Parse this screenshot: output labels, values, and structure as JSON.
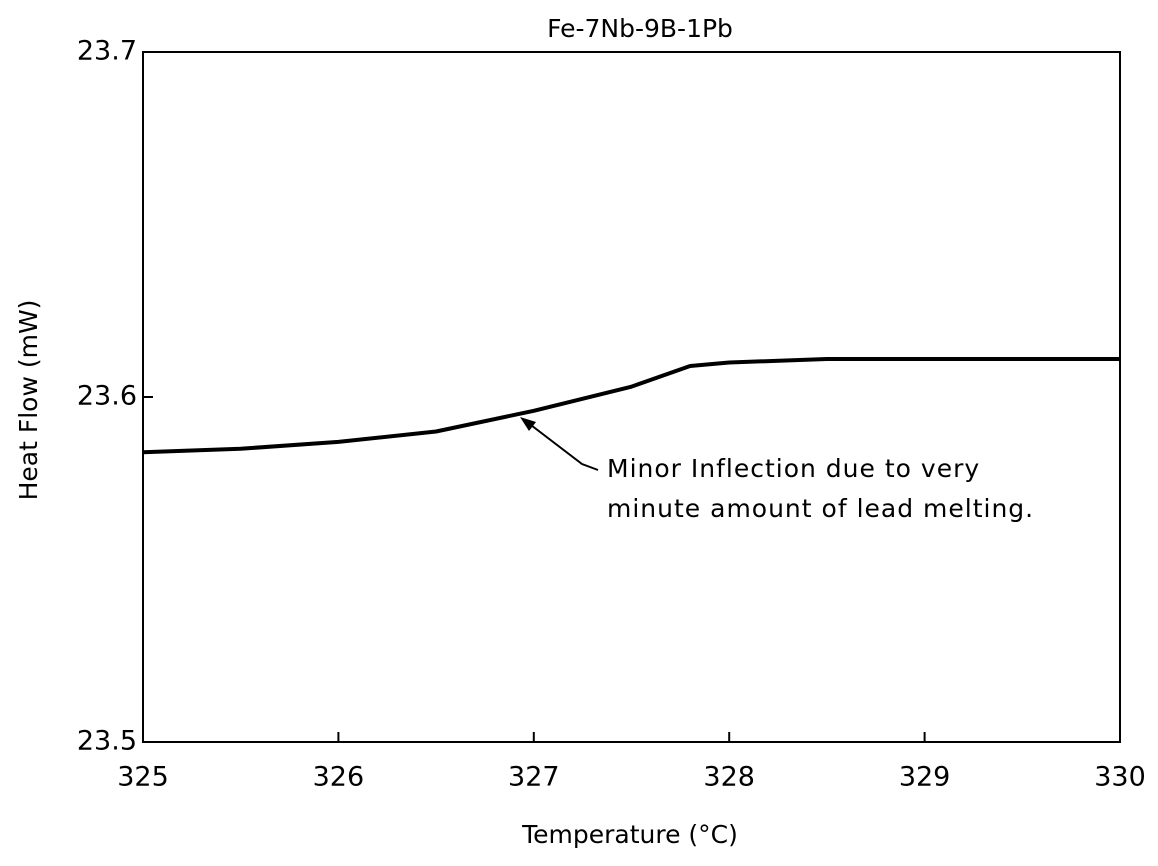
{
  "chart_data": {
    "type": "line",
    "title": "Fe-7Nb-9B-1Pb",
    "x_label": "Temperature (°C)",
    "y_label": "Heat Flow (mW)",
    "x": [
      325,
      325.5,
      326,
      326.5,
      327,
      327.5,
      327.8,
      328,
      328.5,
      329,
      330
    ],
    "values": [
      23.584,
      23.585,
      23.587,
      23.59,
      23.596,
      23.603,
      23.609,
      23.61,
      23.611,
      23.611,
      23.611
    ],
    "color": "#000000",
    "xlim": [
      325,
      330
    ],
    "ylim": [
      23.5,
      23.7
    ],
    "xticks": [
      325,
      326,
      327,
      328,
      329,
      330
    ],
    "yticks": [
      23.5,
      23.6,
      23.7
    ],
    "annotation": [
      "Minor Inflection due to very",
      "minute amount of lead melting."
    ]
  }
}
